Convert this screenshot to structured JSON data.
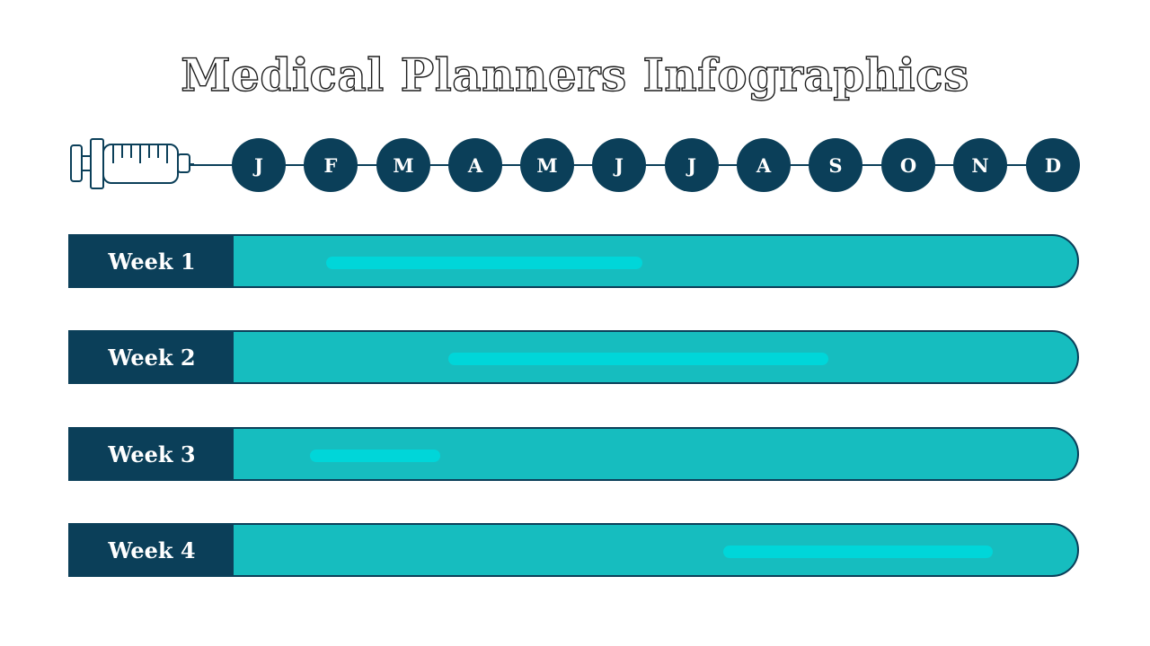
{
  "title": "Medical Planners Infographics",
  "colors": {
    "primary_dark": "#0b3f59",
    "row_fill": "#16bdbf",
    "highlight_bar": "#00d6d9"
  },
  "icon": "syringe-icon",
  "months": [
    "J",
    "F",
    "M",
    "A",
    "M",
    "J",
    "J",
    "A",
    "S",
    "O",
    "N",
    "D"
  ],
  "weeks": [
    {
      "label": "Week 1",
      "bar_start": 0.11,
      "bar_end": 0.485
    },
    {
      "label": "Week 2",
      "bar_start": 0.255,
      "bar_end": 0.705
    },
    {
      "label": "Week 3",
      "bar_start": 0.09,
      "bar_end": 0.245
    },
    {
      "label": "Week 4",
      "bar_start": 0.58,
      "bar_end": 0.9
    }
  ]
}
